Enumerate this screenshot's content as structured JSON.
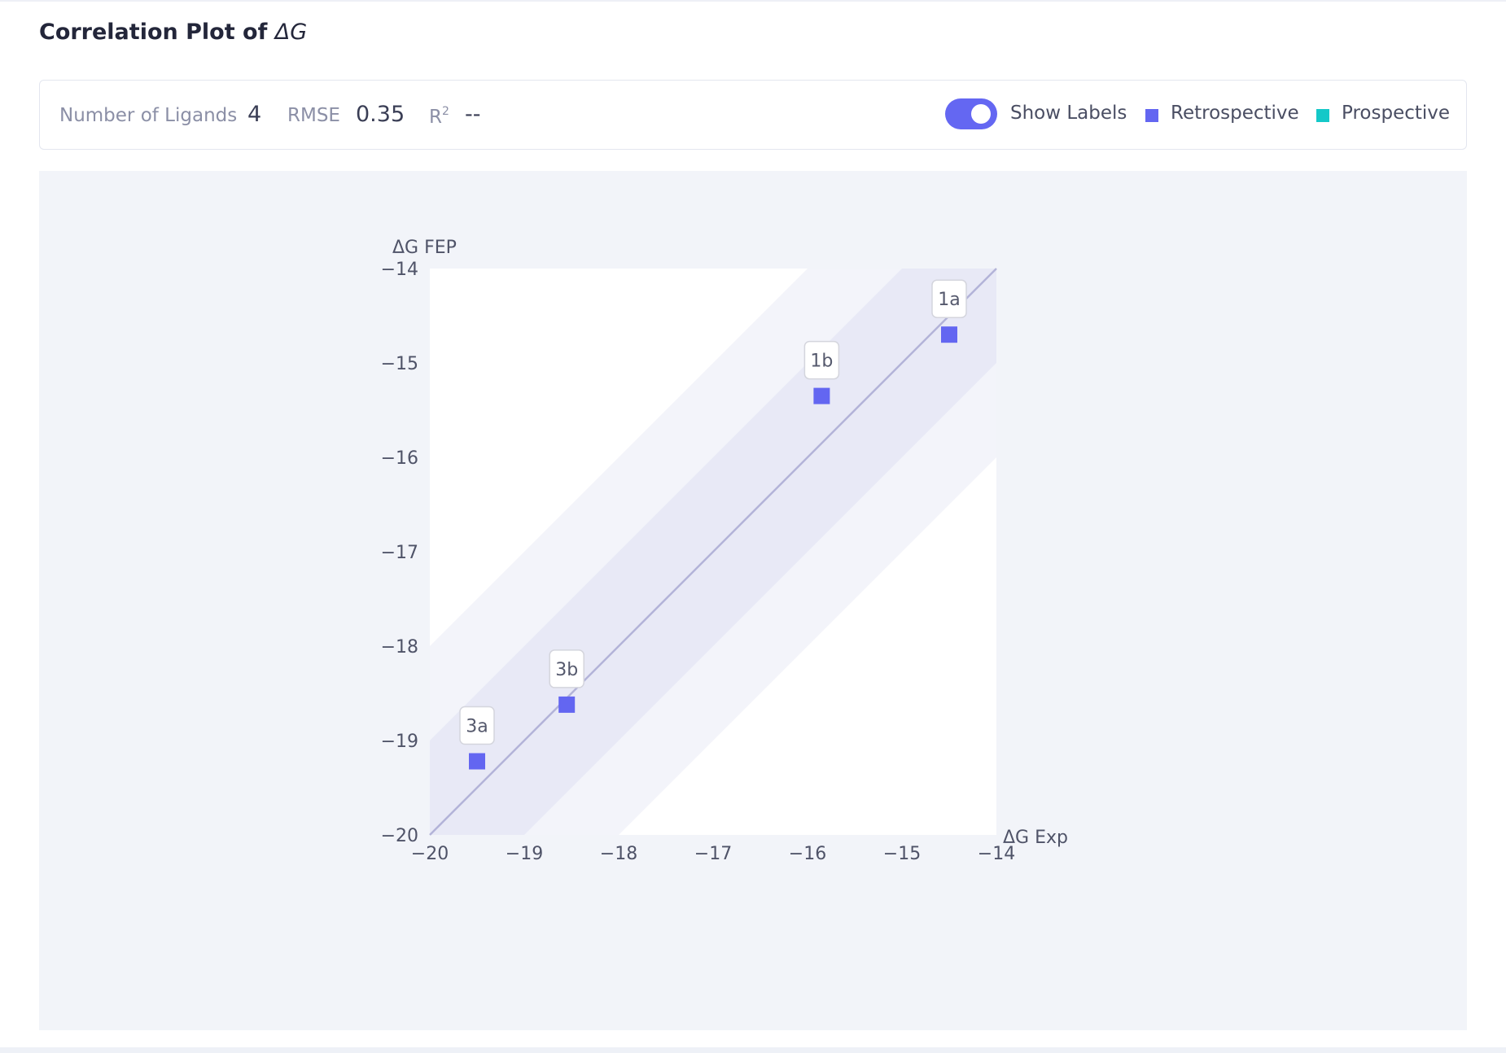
{
  "header": {
    "title_prefix": "Correlation Plot of",
    "title_symbol": "ΔG"
  },
  "stats": {
    "ligands_label": "Number of Ligands",
    "ligands_value": "4",
    "rmse_label": "RMSE",
    "rmse_value": "0.35",
    "r2_label": "R",
    "r2_sup": "2",
    "r2_value": "--"
  },
  "controls": {
    "show_labels": "Show Labels",
    "show_labels_on": true
  },
  "legend": [
    {
      "label": "Retrospective",
      "color": "#6366f1"
    },
    {
      "label": "Prospective",
      "color": "#14c8c8"
    }
  ],
  "chart_data": {
    "type": "scatter",
    "xlabel": "ΔG Exp",
    "ylabel": "ΔG FEP",
    "xlim": [
      -20,
      -14
    ],
    "ylim": [
      -20,
      -14
    ],
    "xticks": [
      "−20",
      "−19",
      "−18",
      "−17",
      "−16",
      "−15",
      "−14"
    ],
    "yticks": [
      "−14",
      "−15",
      "−16",
      "−17",
      "−18",
      "−19",
      "−20"
    ],
    "diagonal": true,
    "bands": [
      1,
      2
    ],
    "show_labels": true,
    "series": [
      {
        "name": "Retrospective",
        "color": "#6366f1",
        "points": [
          {
            "label": "1a",
            "x": -14.5,
            "y": -14.7
          },
          {
            "label": "1b",
            "x": -15.85,
            "y": -15.35
          },
          {
            "label": "3b",
            "x": -18.55,
            "y": -18.62
          },
          {
            "label": "3a",
            "x": -19.5,
            "y": -19.22
          }
        ]
      }
    ]
  }
}
